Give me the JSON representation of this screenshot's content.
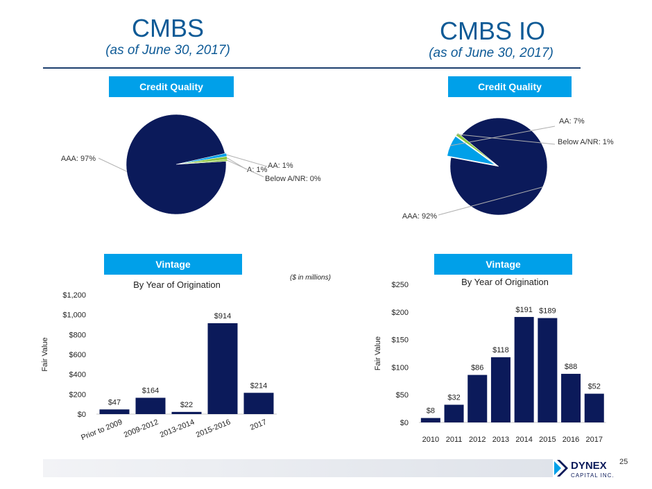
{
  "header": {
    "left_title": "CMBS",
    "left_subtitle": "(as of June 30, 2017)",
    "right_title": "CMBS IO",
    "right_subtitle": "(as of June 30, 2017)"
  },
  "badges": {
    "credit_quality": "Credit Quality",
    "vintage": "Vintage"
  },
  "note": "($ in millions)",
  "footer": {
    "page_number": "25",
    "logo_main": "DYNEX",
    "logo_sub": "CAPITAL INC."
  },
  "colors": {
    "navy": "#0b1a5a",
    "sky": "#00a0e9",
    "green": "#8cc63f",
    "title_blue": "#0e5a96"
  },
  "chart_data": [
    {
      "type": "pie",
      "title": "CMBS Credit Quality",
      "slices": [
        {
          "label": "AAA: 97%",
          "name": "AAA",
          "value": 97
        },
        {
          "label": "AA: 1%",
          "name": "AA",
          "value": 1
        },
        {
          "label": "A: 1%",
          "name": "A",
          "value": 1
        },
        {
          "label": "Below A/NR: 0%",
          "name": "Below A/NR",
          "value": 0.5
        }
      ]
    },
    {
      "type": "pie",
      "title": "CMBS IO Credit Quality",
      "slices": [
        {
          "label": "AAA: 92%",
          "name": "AAA",
          "value": 92
        },
        {
          "label": "AA: 7%",
          "name": "AA",
          "value": 7
        },
        {
          "label": "Below A/NR: 1%",
          "name": "Below A/NR",
          "value": 1
        }
      ]
    },
    {
      "type": "bar",
      "title": "By Year of Origination",
      "ylabel": "Fair Value",
      "categories": [
        "Prior to 2009",
        "2009-2012",
        "2013-2014",
        "2015-2016",
        "2017"
      ],
      "values": [
        47,
        164,
        22,
        914,
        214
      ],
      "data_labels": [
        "$47",
        "$164",
        "$22",
        "$914",
        "$214"
      ],
      "ylim": [
        0,
        1200
      ],
      "yticks": [
        0,
        200,
        400,
        600,
        800,
        1000,
        1200
      ],
      "ytick_labels": [
        "$0",
        "$200",
        "$400",
        "$600",
        "$800",
        "$1,000",
        "$1,200"
      ]
    },
    {
      "type": "bar",
      "title": "By Year of Origination",
      "ylabel": "Fair Value",
      "categories": [
        "2010",
        "2011",
        "2012",
        "2013",
        "2014",
        "2015",
        "2016",
        "2017"
      ],
      "values": [
        8,
        32,
        86,
        118,
        191,
        189,
        88,
        52
      ],
      "data_labels": [
        "$8",
        "$32",
        "$86",
        "$118",
        "$191",
        "$189",
        "$88",
        "$52"
      ],
      "ylim": [
        0,
        250
      ],
      "yticks": [
        0,
        50,
        100,
        150,
        200,
        250
      ],
      "ytick_labels": [
        "$0",
        "$50",
        "$100",
        "$150",
        "$200",
        "$250"
      ]
    }
  ]
}
